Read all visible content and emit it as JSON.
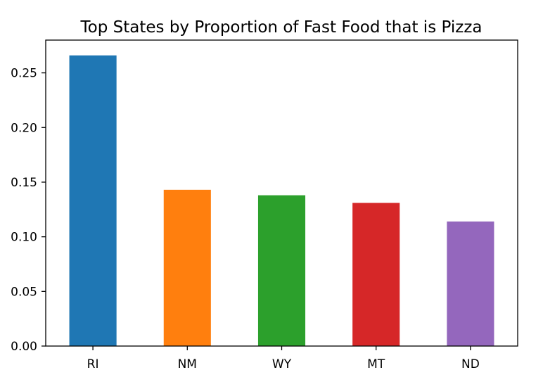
{
  "chart_data": {
    "type": "bar",
    "title": "Top States by Proportion of Fast Food that is Pizza",
    "xlabel": "",
    "ylabel": "",
    "categories": [
      "RI",
      "NM",
      "WY",
      "MT",
      "ND"
    ],
    "values": [
      0.266,
      0.143,
      0.138,
      0.131,
      0.114
    ],
    "colors": [
      "#1f77b4",
      "#ff7f0e",
      "#2ca02c",
      "#d62728",
      "#9467bd"
    ],
    "ylim": [
      0,
      0.28
    ],
    "yticks": [
      0.0,
      0.05,
      0.1,
      0.15,
      0.2,
      0.25
    ],
    "ytick_labels": [
      "0.00",
      "0.05",
      "0.10",
      "0.15",
      "0.20",
      "0.25"
    ],
    "grid": false,
    "legend": "none"
  }
}
